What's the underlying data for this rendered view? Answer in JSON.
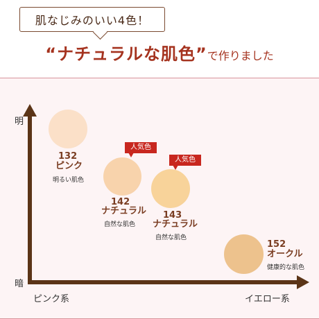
{
  "header": {
    "badge_text": "肌なじみのいい4色！",
    "headline_main": "“ナチュラルな肌色”",
    "headline_suffix": "で作りました"
  },
  "axes": {
    "y_top": "明",
    "y_bottom": "暗",
    "x_left": "ピンク系",
    "x_right": "イエロー系"
  },
  "shades": [
    {
      "code": "132",
      "name": "ピンク",
      "note": "明るい肌色",
      "color": "#fbe0c8"
    },
    {
      "code": "142",
      "name": "ナチュラル",
      "note": "自然な肌色",
      "color": "#f8d3ac",
      "badge": "人気色"
    },
    {
      "code": "143",
      "name": "ナチュラル",
      "note": "自然な肌色",
      "color": "#f8d39a",
      "badge": "人気色"
    },
    {
      "code": "152",
      "name": "オークル",
      "note": "健康的な肌色",
      "color": "#edc28d"
    }
  ],
  "colors": {
    "headline": "#a5331f",
    "axis": "#5b3417",
    "badge": "#c8271f",
    "panel_bg": "#fdf4f5"
  }
}
